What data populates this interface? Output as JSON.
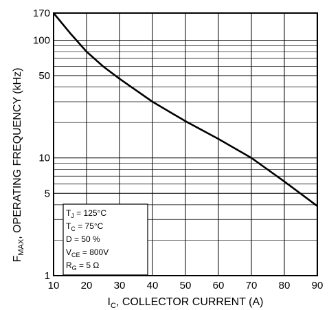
{
  "chart_data": {
    "type": "line",
    "xlabel": {
      "main": "I",
      "sub": "C",
      "rest": ", COLLECTOR CURRENT (A)"
    },
    "ylabel": {
      "main": "F",
      "sub": "MAX",
      "rest": ", OPERATING FREQUENCY (kHz)"
    },
    "x_scale": "linear",
    "y_scale": "log",
    "xlim": [
      10,
      90
    ],
    "ylim": [
      1,
      170
    ],
    "grid": true,
    "x_ticks": [
      10,
      20,
      30,
      40,
      50,
      60,
      70,
      80,
      90
    ],
    "x_tick_labels": [
      "10",
      "20",
      "30",
      "40",
      "50",
      "60",
      "70",
      "80",
      "90"
    ],
    "y_tick_labels": [
      {
        "value": 1,
        "label": "1"
      },
      {
        "value": 5,
        "label": "5"
      },
      {
        "value": 10,
        "label": "10"
      },
      {
        "value": 50,
        "label": "50"
      },
      {
        "value": 100,
        "label": "100"
      },
      {
        "value": 170,
        "label": "170"
      }
    ],
    "series": [
      {
        "x": [
          10,
          15,
          20,
          25,
          30,
          40,
          50,
          60,
          70,
          80,
          90
        ],
        "y": [
          170,
          115,
          80,
          60,
          47,
          30,
          20.5,
          14.5,
          10,
          6.3,
          3.9
        ]
      }
    ],
    "annotation": [
      {
        "main": "T",
        "sub": "J",
        "rest": " =  125°C"
      },
      {
        "main": "T",
        "sub": "C",
        "rest": " =  75°C"
      },
      {
        "main": "D = 50 %",
        "sub": "",
        "rest": ""
      },
      {
        "main": "V",
        "sub": "CE",
        "rest": " =  800V"
      },
      {
        "main": "R",
        "sub": "G",
        "rest": " = 5 Ω"
      }
    ]
  }
}
